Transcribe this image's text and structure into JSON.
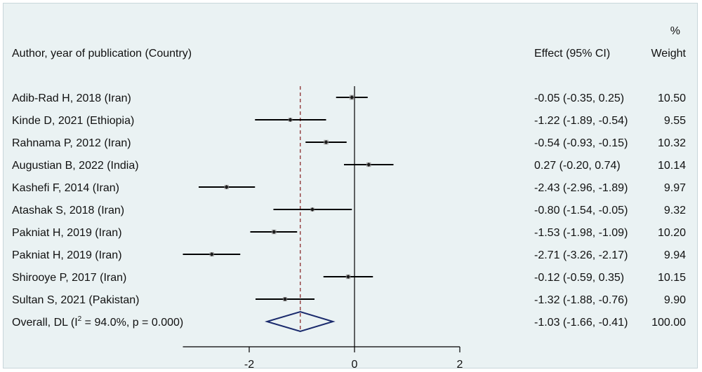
{
  "chart_data": {
    "type": "forest",
    "header": {
      "study": "Author, year of publication (Country)",
      "effect": "Effect (95% CI)",
      "weight_top": "%",
      "weight": "Weight"
    },
    "studies": [
      {
        "label": "Adib-Rad H, 2018 (Iran)",
        "effect": -0.05,
        "lo": -0.35,
        "hi": 0.25,
        "ci_text": "-0.05 (-0.35, 0.25)",
        "weight": "10.50"
      },
      {
        "label": "Kinde D, 2021 (Ethiopia)",
        "effect": -1.22,
        "lo": -1.89,
        "hi": -0.54,
        "ci_text": "-1.22 (-1.89, -0.54)",
        "weight": "9.55"
      },
      {
        "label": "Rahnama P, 2012 (Iran)",
        "effect": -0.54,
        "lo": -0.93,
        "hi": -0.15,
        "ci_text": "-0.54 (-0.93, -0.15)",
        "weight": "10.32"
      },
      {
        "label": "Augustian B, 2022 (India)",
        "effect": 0.27,
        "lo": -0.2,
        "hi": 0.74,
        "ci_text": "0.27 (-0.20, 0.74)",
        "weight": "10.14"
      },
      {
        "label": "Kashefi F, 2014 (Iran)",
        "effect": -2.43,
        "lo": -2.96,
        "hi": -1.89,
        "ci_text": "-2.43 (-2.96, -1.89)",
        "weight": "9.97"
      },
      {
        "label": "Atashak S, 2018 (Iran)",
        "effect": -0.8,
        "lo": -1.54,
        "hi": -0.05,
        "ci_text": "-0.80 (-1.54, -0.05)",
        "weight": "9.32"
      },
      {
        "label": "Pakniat H, 2019 (Iran)",
        "effect": -1.53,
        "lo": -1.98,
        "hi": -1.09,
        "ci_text": "-1.53 (-1.98, -1.09)",
        "weight": "10.20"
      },
      {
        "label": "Pakniat H, 2019 (Iran)",
        "effect": -2.71,
        "lo": -3.26,
        "hi": -2.17,
        "ci_text": "-2.71 (-3.26, -2.17)",
        "weight": "9.94"
      },
      {
        "label": "Shirooye P, 2017 (Iran)",
        "effect": -0.12,
        "lo": -0.59,
        "hi": 0.35,
        "ci_text": "-0.12 (-0.59, 0.35)",
        "weight": "10.15"
      },
      {
        "label": "Sultan S, 2021 (Pakistan)",
        "effect": -1.32,
        "lo": -1.88,
        "hi": -0.76,
        "ci_text": "-1.32 (-1.88, -0.76)",
        "weight": "9.90"
      }
    ],
    "overall": {
      "label_pre": "Overall, DL (I",
      "label_sup": "2",
      "label_post": " = 94.0%, p = 0.000)",
      "effect": -1.03,
      "lo": -1.66,
      "hi": -0.41,
      "ci_text": "-1.03 (-1.66, -0.41)",
      "weight": "100.00"
    },
    "x_ticks": [
      -2,
      0,
      2
    ],
    "x_tick_labels": [
      "-2",
      "0",
      "2"
    ],
    "xlim": [
      -3.26,
      2.0
    ],
    "null_line": 0,
    "colors": {
      "background": "#eaf2f3",
      "ci_line": "#000000",
      "weight_box": "#a6a6a6",
      "point": "#1a1a1a",
      "diamond": "#1a2a6c",
      "pooled_line": "#8b2c2c"
    }
  }
}
